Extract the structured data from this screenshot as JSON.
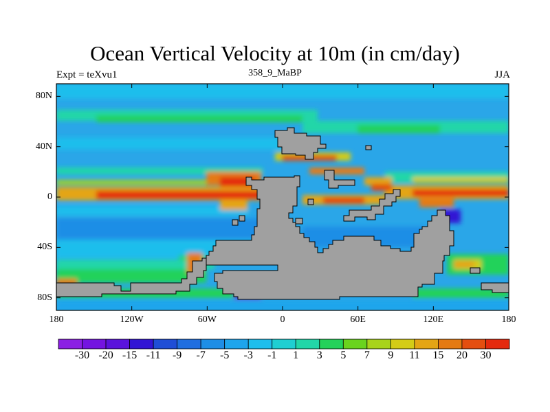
{
  "title": "Ocean Vertical Velocity at 10m (in cm/day)",
  "left_subtitle": "Expt = teXvu1",
  "center_subtitle": "358_9_MaBP",
  "right_subtitle": "JJA",
  "lat_ticks": [
    {
      "label": "80N",
      "lat": 80
    },
    {
      "label": "40N",
      "lat": 40
    },
    {
      "label": "0",
      "lat": 0
    },
    {
      "label": "40S",
      "lat": -40
    },
    {
      "label": "80S",
      "lat": -80
    }
  ],
  "lon_ticks": [
    {
      "label": "180",
      "lon": -180
    },
    {
      "label": "120W",
      "lon": -120
    },
    {
      "label": "60W",
      "lon": -60
    },
    {
      "label": "0",
      "lon": 0
    },
    {
      "label": "60E",
      "lon": 60
    },
    {
      "label": "120E",
      "lon": 120
    },
    {
      "label": "180",
      "lon": 180
    }
  ],
  "colorbar": {
    "levels": [
      "-30",
      "-20",
      "-15",
      "-11",
      "-9",
      "-7",
      "-5",
      "-3",
      "-1",
      "1",
      "3",
      "5",
      "7",
      "9",
      "11",
      "15",
      "20",
      "30"
    ],
    "colors": [
      "#8b1fe3",
      "#7414e0",
      "#5a13dc",
      "#3215d4",
      "#1f4ed6",
      "#1f6ee0",
      "#1e8ee6",
      "#1ea5ec",
      "#1ebeec",
      "#1fcfd2",
      "#22d6a8",
      "#24d25a",
      "#6ad31e",
      "#a8d31a",
      "#d4cc16",
      "#e4a514",
      "#e47a12",
      "#e44e10",
      "#e42a0e"
    ]
  },
  "land_color": "#a0a0a0",
  "ocean_color": "#2aa6e8"
}
